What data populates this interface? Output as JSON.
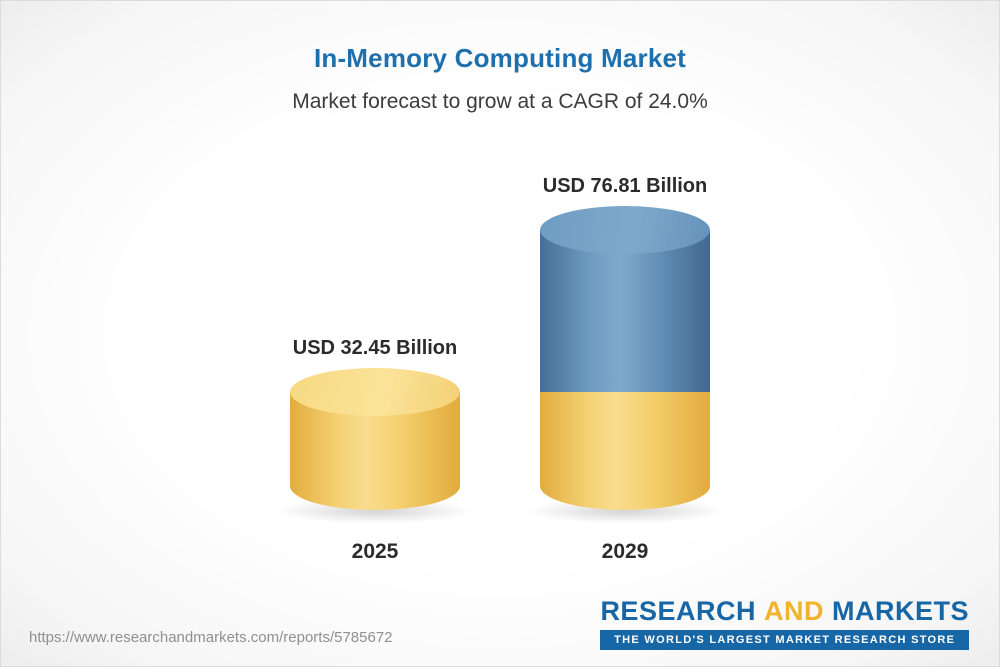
{
  "header": {
    "title": "In-Memory Computing Market",
    "subtitle": "Market forecast to grow at a CAGR of 24.0%"
  },
  "chart_data": {
    "type": "bar",
    "title": "In-Memory Computing Market",
    "subtitle": "Market forecast to grow at a CAGR of 24.0%",
    "cagr_percent": 24.0,
    "unit": "USD Billion",
    "categories": [
      "2025",
      "2029"
    ],
    "values": [
      32.45,
      76.81
    ],
    "value_labels": [
      "USD 32.45 Billion",
      "USD 76.81 Billion"
    ],
    "legend": "none",
    "grid": "off",
    "axes": "none",
    "bar_style": "3d-cylinder",
    "stacking_note": "2029 cylinder is stacked: bottom yellow segment equals the 2025 value (32.45), blue top segment is the growth up to 76.81",
    "colors": {
      "bar_2025": "#f3cd69",
      "bar_2029_growth_segment": "#5f8db5",
      "bar_2029_base_segment": "#f3cd69",
      "title_text": "#1d6fad",
      "label_text": "#2b2b2b"
    }
  },
  "footer": {
    "url": "https://www.researchandmarkets.com/reports/5785672",
    "logo": {
      "part1": "RESEARCH",
      "part2": "AND",
      "part3": "MARKETS",
      "tagline": "THE WORLD'S LARGEST MARKET RESEARCH STORE"
    }
  }
}
